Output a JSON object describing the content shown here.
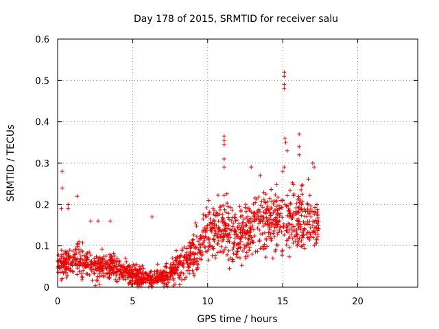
{
  "chart_data": {
    "type": "scatter",
    "title": "Day 178 of 2015, SRMTID for receiver salu",
    "xlabel": "GPS time / hours",
    "ylabel": "SRMTID / TECUs",
    "xlim": [
      0,
      24
    ],
    "ylim": [
      0,
      0.6
    ],
    "xticks": [
      0,
      5,
      10,
      15,
      20
    ],
    "yticks": [
      0,
      0.1,
      0.2,
      0.3,
      0.4,
      0.5,
      0.6
    ],
    "xtick_labels": [
      "0",
      "5",
      "10",
      "15",
      "20"
    ],
    "ytick_labels": [
      "0",
      "0.1",
      "0.2",
      "0.3",
      "0.4",
      "0.5",
      "0.6"
    ],
    "grid": true,
    "marker": "+",
    "marker_color": "#ee0000",
    "trend": {
      "x": [
        0,
        1,
        2,
        3,
        4,
        5,
        6,
        7,
        8,
        9,
        10,
        11,
        12,
        13,
        14,
        15,
        16,
        17,
        17.4
      ],
      "y": [
        0.05,
        0.07,
        0.05,
        0.05,
        0.045,
        0.03,
        0.02,
        0.025,
        0.05,
        0.08,
        0.13,
        0.15,
        0.12,
        0.15,
        0.16,
        0.17,
        0.16,
        0.16,
        0.14
      ],
      "spread": [
        0.03,
        0.04,
        0.035,
        0.035,
        0.03,
        0.025,
        0.02,
        0.025,
        0.035,
        0.045,
        0.06,
        0.07,
        0.06,
        0.07,
        0.07,
        0.07,
        0.07,
        0.07,
        0.06
      ],
      "count": 1500
    },
    "points": [
      [
        0.3,
        0.28
      ],
      [
        0.3,
        0.24
      ],
      [
        0.25,
        0.19
      ],
      [
        0.7,
        0.2
      ],
      [
        0.7,
        0.19
      ],
      [
        1.3,
        0.22
      ],
      [
        2.2,
        0.16
      ],
      [
        2.7,
        0.16
      ],
      [
        3.5,
        0.16
      ],
      [
        6.3,
        0.17
      ],
      [
        15.1,
        0.52
      ],
      [
        15.1,
        0.51
      ],
      [
        15.1,
        0.49
      ],
      [
        15.1,
        0.48
      ],
      [
        11.1,
        0.365
      ],
      [
        11.1,
        0.355
      ],
      [
        11.1,
        0.345
      ],
      [
        11.1,
        0.31
      ],
      [
        11.1,
        0.29
      ],
      [
        15.15,
        0.36
      ],
      [
        15.2,
        0.35
      ],
      [
        15.3,
        0.33
      ],
      [
        16.1,
        0.37
      ],
      [
        16.1,
        0.34
      ],
      [
        16.1,
        0.32
      ],
      [
        17.0,
        0.3
      ],
      [
        17.1,
        0.29
      ],
      [
        12.9,
        0.29
      ],
      [
        13.5,
        0.27
      ],
      [
        15.1,
        0.29
      ],
      [
        15.0,
        0.28
      ]
    ]
  }
}
